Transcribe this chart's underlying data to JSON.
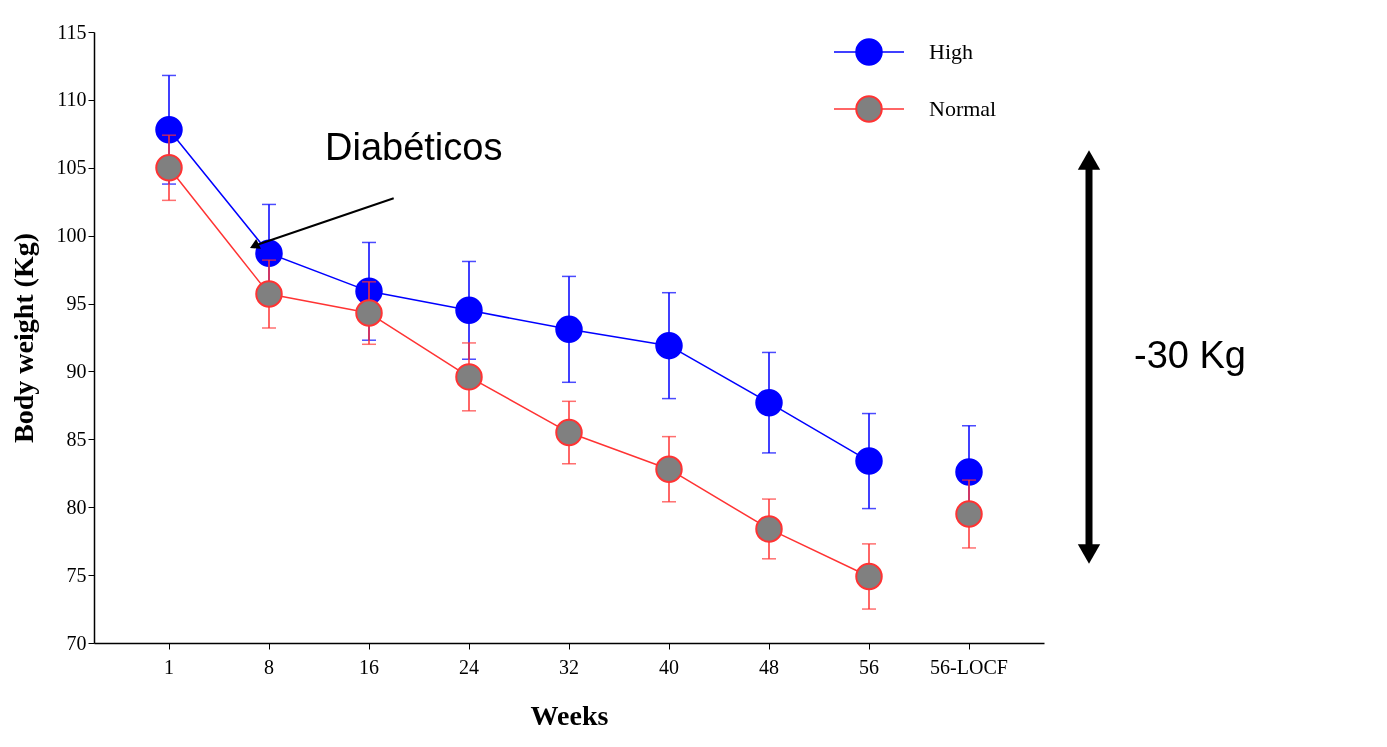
{
  "chart_data": {
    "type": "line",
    "xlabel": "Weeks",
    "ylabel": "Body weight (Kg)",
    "categories": [
      "1",
      "8",
      "16",
      "24",
      "32",
      "40",
      "48",
      "56",
      "56-LOCF"
    ],
    "series": [
      {
        "name": "High",
        "color": "#0000ff",
        "values": [
          107.8,
          98.7,
          95.9,
          94.5,
          93.1,
          91.9,
          87.7,
          83.4,
          null
        ],
        "errors": [
          4.0,
          3.6,
          3.6,
          3.6,
          3.9,
          3.9,
          3.7,
          3.5,
          null
        ]
      },
      {
        "name": "Normal",
        "color": "#ff3333",
        "values": [
          105.0,
          95.7,
          94.3,
          89.6,
          85.5,
          82.8,
          78.4,
          74.9,
          null
        ],
        "errors": [
          2.4,
          2.5,
          2.3,
          2.5,
          2.3,
          2.4,
          2.2,
          2.4,
          null
        ]
      },
      {
        "type": "scatter",
        "color": "#0000ff",
        "values": [
          null,
          null,
          null,
          null,
          null,
          null,
          null,
          null,
          82.6
        ],
        "errors": [
          null,
          null,
          null,
          null,
          null,
          null,
          null,
          null,
          3.4
        ]
      },
      {
        "type": "scatter",
        "color": "#ff3333",
        "values": [
          null,
          null,
          null,
          null,
          null,
          null,
          null,
          null,
          79.5
        ],
        "errors": [
          null,
          null,
          null,
          null,
          null,
          null,
          null,
          null,
          2.5
        ]
      }
    ],
    "ylim": [
      70,
      115
    ],
    "yticks": [
      70,
      75,
      80,
      85,
      90,
      95,
      100,
      105,
      110,
      115
    ],
    "grid": false,
    "legend": "top right",
    "marker": "circle",
    "annotations": [
      {
        "text": "Diabéticos",
        "x": "8",
        "y": 98.7
      },
      "-30 Kg"
    ]
  }
}
